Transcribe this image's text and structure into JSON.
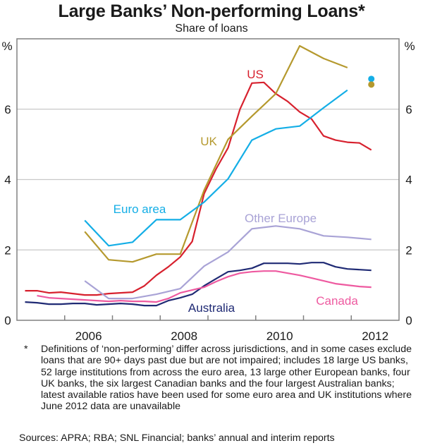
{
  "chart_data": {
    "type": "line",
    "title": "Large Banks’ Non-performing Loans*",
    "subtitle": "Share of loans",
    "xlabel": "",
    "ylabel": "%",
    "ylabel_right": "%",
    "xlim": [
      2005.0,
      2013.0
    ],
    "ylim": [
      0,
      8
    ],
    "yticks": [
      0,
      2,
      4,
      6
    ],
    "xticks_labels": [
      "2006",
      "2008",
      "2010",
      "2012"
    ],
    "xtick_label_years": [
      2006,
      2008,
      2010,
      2012
    ],
    "grid": true,
    "series": [
      {
        "name": "US",
        "color": "#d7212e",
        "label": "US",
        "x": [
          2005.17,
          2005.42,
          2005.67,
          2005.92,
          2006.17,
          2006.42,
          2006.67,
          2006.92,
          2007.17,
          2007.42,
          2007.67,
          2007.92,
          2008.17,
          2008.42,
          2008.67,
          2008.92,
          2009.17,
          2009.42,
          2009.67,
          2009.92,
          2010.17,
          2010.42,
          2010.67,
          2010.92,
          2011.17,
          2011.42,
          2011.67,
          2011.92,
          2012.17,
          2012.42
        ],
        "y": [
          0.84,
          0.84,
          0.78,
          0.8,
          0.76,
          0.72,
          0.72,
          0.76,
          0.78,
          0.8,
          0.98,
          1.28,
          1.52,
          1.8,
          2.24,
          3.6,
          4.3,
          4.9,
          6.0,
          6.74,
          6.76,
          6.44,
          6.22,
          5.92,
          5.72,
          5.24,
          5.12,
          5.06,
          5.04,
          4.84
        ]
      },
      {
        "name": "UK",
        "color": "#b5992e",
        "label": "UK",
        "x": [
          2006.42,
          2006.92,
          2007.42,
          2007.92,
          2008.42,
          2008.92,
          2009.42,
          2009.92,
          2010.42,
          2010.92,
          2011.42,
          2011.92
        ],
        "y": [
          2.52,
          1.72,
          1.66,
          1.88,
          1.88,
          3.7,
          5.14,
          5.8,
          6.44,
          7.8,
          7.44,
          7.18
        ]
      },
      {
        "name": "Euro area",
        "color": "#14aee6",
        "label": "Euro area",
        "x": [
          2006.42,
          2006.92,
          2007.42,
          2007.92,
          2008.42,
          2008.92,
          2009.42,
          2009.92,
          2010.42,
          2010.92,
          2011.42,
          2011.92
        ],
        "y": [
          2.84,
          2.12,
          2.22,
          2.86,
          2.86,
          3.36,
          4.02,
          5.12,
          5.44,
          5.52,
          6.04,
          6.54
        ]
      },
      {
        "name": "Other Europe",
        "color": "#a9a3d6",
        "label": "Other Europe",
        "x": [
          2006.42,
          2006.92,
          2007.42,
          2007.92,
          2008.42,
          2008.92,
          2009.42,
          2009.92,
          2010.42,
          2010.92,
          2011.42,
          2011.92,
          2012.42
        ],
        "y": [
          1.12,
          0.62,
          0.62,
          0.74,
          0.9,
          1.54,
          1.94,
          2.6,
          2.68,
          2.6,
          2.4,
          2.36,
          2.3
        ]
      },
      {
        "name": "Australia",
        "color": "#1f2a74",
        "label": "Australia",
        "x": [
          2005.17,
          2005.42,
          2005.67,
          2005.92,
          2006.17,
          2006.42,
          2006.67,
          2006.92,
          2007.17,
          2007.42,
          2007.67,
          2007.92,
          2008.17,
          2008.42,
          2008.67,
          2008.92,
          2009.17,
          2009.42,
          2009.67,
          2009.92,
          2010.17,
          2010.42,
          2010.67,
          2010.92,
          2011.17,
          2011.42,
          2011.67,
          2011.92,
          2012.17,
          2012.42
        ],
        "y": [
          0.52,
          0.5,
          0.46,
          0.46,
          0.48,
          0.48,
          0.44,
          0.46,
          0.48,
          0.46,
          0.42,
          0.42,
          0.56,
          0.64,
          0.74,
          0.98,
          1.18,
          1.38,
          1.42,
          1.48,
          1.62,
          1.62,
          1.62,
          1.6,
          1.64,
          1.64,
          1.52,
          1.46,
          1.44,
          1.42
        ]
      },
      {
        "name": "Canada",
        "color": "#ee5aa0",
        "label": "Canada",
        "x": [
          2005.42,
          2005.67,
          2005.92,
          2006.17,
          2006.42,
          2006.67,
          2006.92,
          2007.17,
          2007.42,
          2007.67,
          2007.92,
          2008.17,
          2008.42,
          2008.67,
          2008.92,
          2009.17,
          2009.42,
          2009.67,
          2009.92,
          2010.17,
          2010.42,
          2010.67,
          2010.92,
          2011.17,
          2011.42,
          2011.67,
          2011.92,
          2012.17,
          2012.42
        ],
        "y": [
          0.7,
          0.64,
          0.62,
          0.6,
          0.58,
          0.56,
          0.54,
          0.56,
          0.54,
          0.54,
          0.52,
          0.62,
          0.78,
          0.86,
          0.94,
          1.1,
          1.24,
          1.34,
          1.38,
          1.4,
          1.4,
          1.34,
          1.28,
          1.2,
          1.12,
          1.04,
          1.0,
          0.96,
          0.94
        ]
      }
    ],
    "points": [
      {
        "name": "Euro area June 2012",
        "series": "Euro area",
        "x": 2012.42,
        "y": 6.86,
        "color": "#14aee6"
      },
      {
        "name": "UK June 2012",
        "series": "UK",
        "x": 2012.42,
        "y": 6.7,
        "color": "#b5992e"
      }
    ],
    "footnote_marker": "*",
    "footnote": "Definitions of ‘non-performing’ differ across jurisdictions, and in some cases exclude loans that are 90+ days past due but are not impaired; includes 18 large US banks, 52 large institutions from across the euro area, 13 large other European banks, four UK banks, the six largest Canadian banks and the four largest Australian banks; latest available ratios have been used for some euro area and UK institutions where June 2012 data are unavailable",
    "sources": "Sources: APRA; RBA; SNL Financial; banks’ annual and interim reports"
  }
}
